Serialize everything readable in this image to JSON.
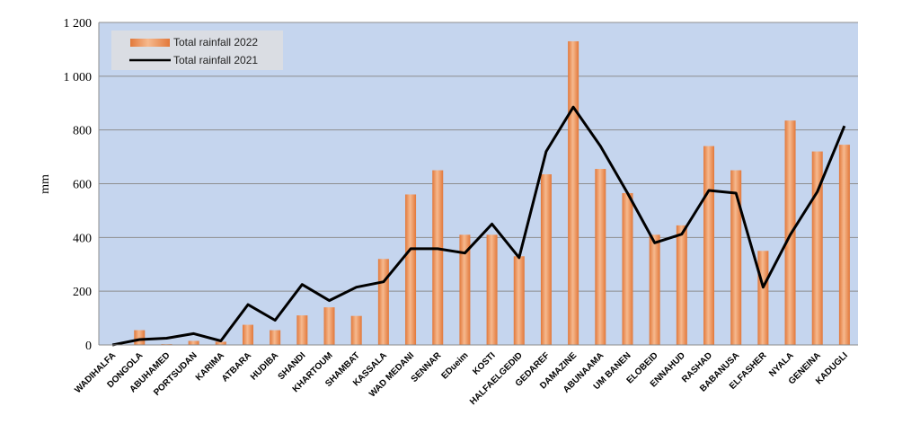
{
  "chart_data": {
    "type": "bar",
    "ylabel": "mm",
    "xlabel": "",
    "ylim": [
      0,
      1200
    ],
    "yticks": [
      0,
      200,
      400,
      600,
      800,
      1000,
      1200
    ],
    "ytick_labels": [
      "0",
      "200",
      "400",
      "600",
      "800",
      "1 000",
      "1 200"
    ],
    "grid": true,
    "legend_position": "top-left",
    "categories": [
      "WADIHALFA",
      "DONGOLA",
      "ABUHAMED",
      "PORTSUDAN",
      "KARIMA",
      "ATBARA",
      "HUDIBA",
      "SHANDI",
      "KHARTOUM",
      "SHAMBAT",
      "KASSALA",
      "WAD MEDANI",
      "SENNAR",
      "EDueim",
      "KOSTI",
      "HALFAELGEDID",
      "GEDAREF",
      "DAMAZINE",
      "ABUNAAMA",
      "UM BANEN",
      "ELOBEID",
      "ENNAHUD",
      "RASHAD",
      "BABANUSA",
      "ELFASHER",
      "NYALA",
      "GENEINA",
      "KADUGLI"
    ],
    "series": [
      {
        "name": "Total rainfall 2022",
        "kind": "bar",
        "color": "#ed8a4c",
        "values": [
          0,
          55,
          3,
          15,
          12,
          75,
          55,
          110,
          140,
          108,
          320,
          560,
          650,
          410,
          410,
          330,
          635,
          1130,
          655,
          565,
          410,
          445,
          740,
          650,
          350,
          835,
          720,
          745
        ]
      },
      {
        "name": "Total rainfall 2021",
        "kind": "line",
        "color": "#000000",
        "values": [
          0,
          20,
          25,
          42,
          15,
          150,
          92,
          225,
          165,
          215,
          235,
          358,
          358,
          342,
          450,
          325,
          720,
          885,
          740,
          565,
          380,
          412,
          575,
          565,
          215,
          410,
          570,
          815
        ]
      }
    ]
  },
  "colors": {
    "plot_background": "#c5d5ee",
    "gridline": "#8e8e8e",
    "bar_fill": "#ed8a4c",
    "bar_highlight": "#f6b98e",
    "line": "#000000",
    "legend_background": "#dadde3"
  }
}
